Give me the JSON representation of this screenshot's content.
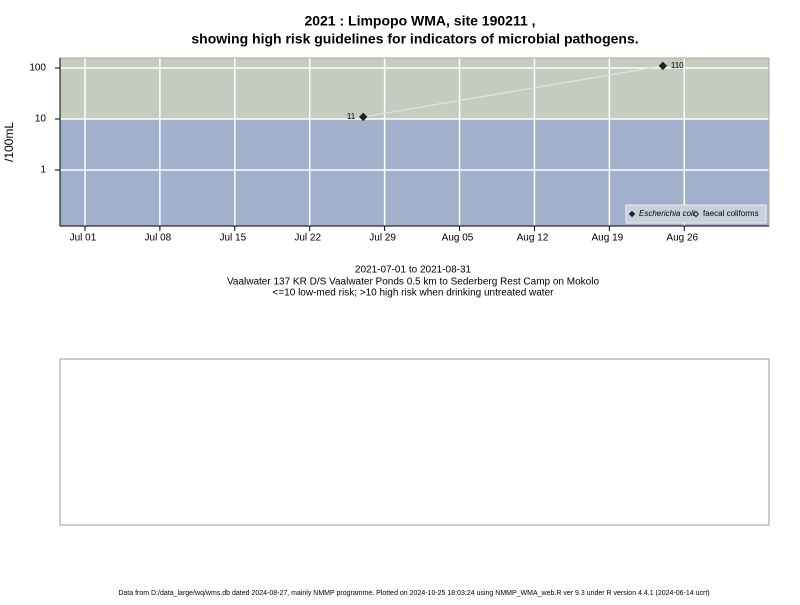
{
  "chart_data": {
    "type": "line",
    "title": "2021 : Limpopo WMA, site 190211 ,",
    "subtitle": "showing high risk guidelines for indicators of microbial pathogens.",
    "y_label": "/100mL",
    "log_scale": true,
    "grid": true,
    "threshold": 10,
    "colors": {
      "above": "#c4ccc0",
      "below": "#a2b1cb",
      "line": "#dedede"
    },
    "x": [
      "2021-07-27",
      "2021-08-24"
    ],
    "series": [
      {
        "name": "Escherichia coli",
        "color": "#222222",
        "marker": "filled",
        "values": [
          11,
          110
        ]
      },
      {
        "name": "faecal coliforms",
        "color": "#222222",
        "marker": "open",
        "values": [
          null,
          null
        ]
      }
    ],
    "xlim": [
      "2021-06-28T16:00",
      "2021-09-02T22:00"
    ],
    "xticks": [
      {
        "value": "2021-07-01",
        "label": "Jul 01"
      },
      {
        "value": "2021-07-08",
        "label": "Jul 08"
      },
      {
        "value": "2021-07-15",
        "label": "Jul 15"
      },
      {
        "value": "2021-07-22",
        "label": "Jul 22"
      },
      {
        "value": "2021-07-29",
        "label": "Jul 29"
      },
      {
        "value": "2021-08-05",
        "label": "Aug 05"
      },
      {
        "value": "2021-08-12",
        "label": "Aug 12"
      },
      {
        "value": "2021-08-19",
        "label": "Aug 19"
      },
      {
        "value": "2021-08-26",
        "label": "Aug 26"
      }
    ],
    "ylim": [
      0.08,
      157
    ],
    "yticks": [
      1,
      10,
      100
    ],
    "legend": "bottom-right",
    "notes": [
      "2021-07-01 to 2021-08-31",
      "Vaalwater 137 KR D/S Vaalwater Ponds 0.5 km to Sederberg Rest Camp on Mokolo",
      "<=10 low-med risk; >10 high risk when drinking untreated water"
    ],
    "footer": "Data from D:/data_large/wq/wms.db dated 2024-08-27, mainly NMMP programme. Plotted on 2024-10-25 18:03:24 using NMMP_WMA_web.R ver 9.3 under R version 4.4.1 (2024-06-14 ucrt)"
  }
}
